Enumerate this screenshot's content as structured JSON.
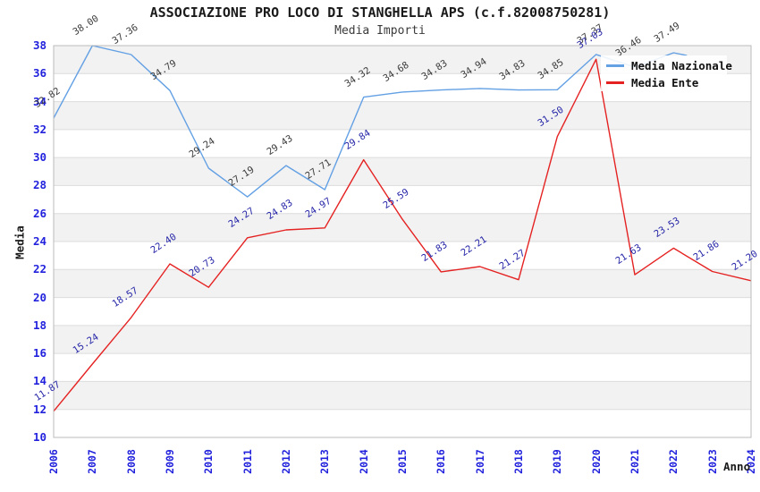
{
  "header": {
    "title": "ASSOCIAZIONE PRO LOCO DI STANGHELLA APS (c.f.82008750281)",
    "subtitle": "Media Importi"
  },
  "legend": {
    "items": [
      {
        "label": "Media Nazionale",
        "color": "#63a0e4"
      },
      {
        "label": "Media Ente",
        "color": "#e52222"
      }
    ]
  },
  "colors": {
    "nazionale_line": "#63a0e4",
    "ente_line": "#e52222",
    "nazionale_point_label": "#3a3a3a",
    "ente_point_label": "#2525a8",
    "axis_tick_text": "#2222dd",
    "band_fill": "#f2f2f2",
    "gridline": "#dcdcdc",
    "plot_frame": "#bbbbbb"
  },
  "chart_data": {
    "type": "line",
    "title": "ASSOCIAZIONE PRO LOCO DI STANGHELLA APS (c.f.82008750281)",
    "subtitle": "Media Importi",
    "xlabel": "Anno",
    "ylabel": "Media",
    "x": [
      2006,
      2007,
      2008,
      2009,
      2010,
      2011,
      2012,
      2013,
      2014,
      2015,
      2016,
      2017,
      2018,
      2019,
      2020,
      2021,
      2022,
      2023,
      2024
    ],
    "series": [
      {
        "name": "Media Nazionale",
        "color": "#63a0e4",
        "label_color": "#3a3a3a",
        "values": [
          32.82,
          38.0,
          37.36,
          34.79,
          29.24,
          27.19,
          29.43,
          27.71,
          34.32,
          34.68,
          34.83,
          34.94,
          34.83,
          34.85,
          37.37,
          36.46,
          37.49,
          null,
          null
        ]
      },
      {
        "name": "Media Ente",
        "color": "#e52222",
        "label_color": "#2525a8",
        "values": [
          11.87,
          15.24,
          18.57,
          22.4,
          20.73,
          24.27,
          24.83,
          24.97,
          29.84,
          25.59,
          21.83,
          22.21,
          21.27,
          31.5,
          37.03,
          21.63,
          23.53,
          21.86,
          21.2
        ]
      }
    ],
    "ylim": [
      10,
      38
    ],
    "ytick_step": 2,
    "y_ticks": [
      10,
      12,
      14,
      16,
      18,
      20,
      22,
      24,
      26,
      28,
      30,
      32,
      34,
      36,
      38
    ],
    "gray_bands": [
      [
        12,
        14
      ],
      [
        16,
        18
      ],
      [
        20,
        22
      ],
      [
        24,
        26
      ],
      [
        28,
        30
      ],
      [
        32,
        34
      ],
      [
        36,
        38
      ]
    ],
    "grid": true,
    "legend_position": "upper right"
  }
}
